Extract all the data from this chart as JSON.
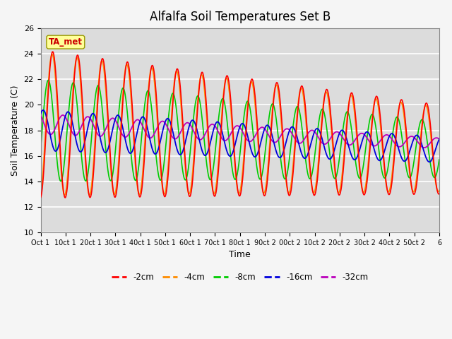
{
  "title": "Alfalfa Soil Temperatures Set B",
  "xlabel": "Time",
  "ylabel": "Soil Temperature (C)",
  "ylim": [
    10,
    26
  ],
  "colors": {
    "2cm": "#ff0000",
    "4cm": "#ff8c00",
    "8cm": "#00cc00",
    "16cm": "#0000dd",
    "32cm": "#bb00bb"
  },
  "legend_labels": [
    "-2cm",
    "-4cm",
    "-8cm",
    "-16cm",
    "-32cm"
  ],
  "annotation_text": "TA_met",
  "annotation_color": "#cc0000",
  "annotation_bg": "#ffff99",
  "plot_bg": "#dcdcdc",
  "fig_bg": "#f5f5f5",
  "grid_color": "#ffffff",
  "title_fontsize": 12,
  "yticks": [
    10,
    12,
    14,
    16,
    18,
    20,
    22,
    24,
    26
  ],
  "xtick_labels": [
    "Oct 1",
    "10ct 1",
    "20ct 1",
    "30ct 1",
    "40ct 1",
    "50ct 1",
    "60ct 1",
    "70ct 1",
    "80ct 1",
    "90ct 2",
    "00ct 2",
    "10ct 2",
    "20ct 2",
    "30ct 2",
    "40ct 2",
    "50ct 2",
    "6"
  ]
}
